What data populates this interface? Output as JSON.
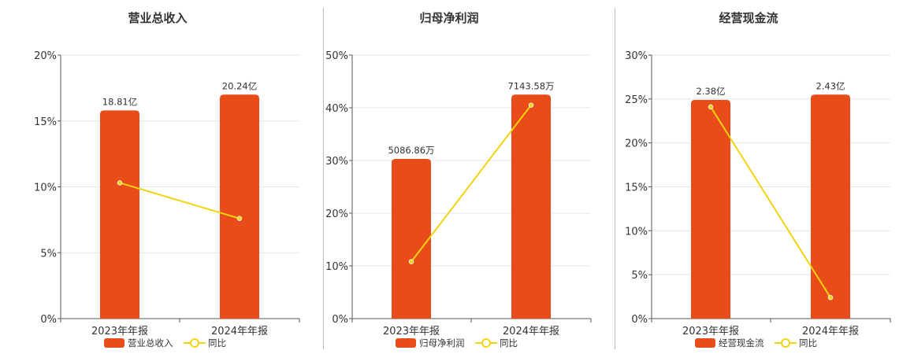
{
  "colors": {
    "bar": "#E84C19",
    "line": "#F2D30F",
    "grid": "#e6e6e6",
    "axis": "#555555"
  },
  "chart_data": [
    {
      "type": "bar",
      "title": "营业总收入",
      "categories": [
        "2023年年报",
        "2024年年报"
      ],
      "series": [
        {
          "name": "营业总收入",
          "type": "bar",
          "values": [
            15.8,
            17.0
          ],
          "labels": [
            "18.81亿",
            "20.24亿"
          ]
        },
        {
          "name": "同比",
          "type": "line",
          "values": [
            10.3,
            7.6
          ]
        }
      ],
      "yticks": [
        "0%",
        "5%",
        "10%",
        "15%",
        "20%"
      ],
      "ylim": [
        0,
        20
      ]
    },
    {
      "type": "bar",
      "title": "归母净利润",
      "categories": [
        "2023年年报",
        "2024年年报"
      ],
      "series": [
        {
          "name": "归母净利润",
          "type": "bar",
          "values": [
            30.3,
            42.5
          ],
          "labels": [
            "5086.86万",
            "7143.58万"
          ]
        },
        {
          "name": "同比",
          "type": "line",
          "values": [
            10.8,
            40.5
          ]
        }
      ],
      "yticks": [
        "0%",
        "10%",
        "20%",
        "30%",
        "40%",
        "50%"
      ],
      "ylim": [
        0,
        50
      ]
    },
    {
      "type": "bar",
      "title": "经营现金流",
      "categories": [
        "2023年年报",
        "2024年年报"
      ],
      "series": [
        {
          "name": "经营现金流",
          "type": "bar",
          "values": [
            24.9,
            25.5
          ],
          "labels": [
            "2.38亿",
            "2.43亿"
          ]
        },
        {
          "name": "同比",
          "type": "line",
          "values": [
            24.1,
            2.4
          ]
        }
      ],
      "yticks": [
        "0%",
        "5%",
        "10%",
        "15%",
        "20%",
        "25%",
        "30%"
      ],
      "ylim": [
        0,
        30
      ]
    }
  ]
}
